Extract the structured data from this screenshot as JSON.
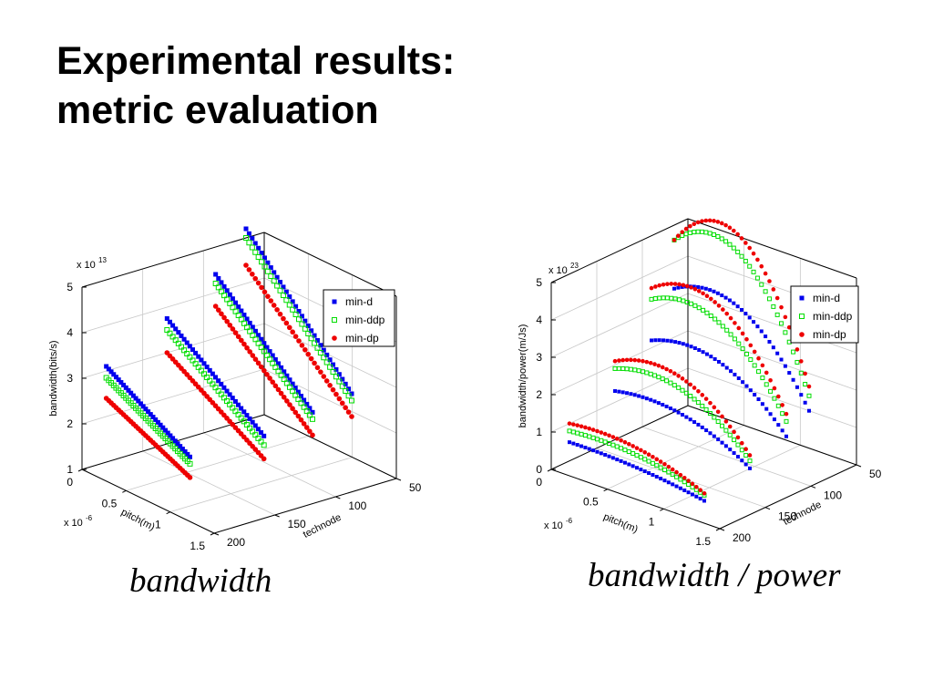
{
  "slide": {
    "title_line1": "Experimental results:",
    "title_line2": "metric evaluation",
    "caption_left": "bandwidth",
    "caption_right": "bandwidth / power"
  },
  "series_colors": {
    "min-d": "#0000ee",
    "min-ddp": "#00dd00",
    "min-dp": "#ee0000"
  },
  "chart_data": [
    {
      "type": "scatter",
      "subtype": "3d-scatter",
      "ylabel": "bandwidth(bits/s)",
      "xlabel_pitch": "pitch(m)",
      "xlabel_technode": "technode",
      "z_exponent": "x 10",
      "z_exponent_power": "13",
      "pitch_exponent": "x 10",
      "pitch_exponent_power": "-6",
      "z_ticks": [
        "1",
        "2",
        "3",
        "4",
        "5"
      ],
      "pitch_ticks": [
        "0",
        "0.5",
        "1",
        "1.5"
      ],
      "technode_ticks": [
        "200",
        "150",
        "100",
        "50"
      ],
      "legend": [
        "min-d",
        "min-ddp",
        "min-dp"
      ],
      "legend_position": "top-right",
      "grid": true,
      "series": [
        {
          "name": "min-d",
          "technode": 180,
          "pitch": [
            0.0,
            0.95
          ],
          "values": [
            3.1,
            2.0
          ]
        },
        {
          "name": "min-d",
          "technode": 130,
          "pitch": [
            0.0,
            1.1
          ],
          "values": [
            3.75,
            2.2
          ]
        },
        {
          "name": "min-d",
          "technode": 90,
          "pitch": [
            0.0,
            1.1
          ],
          "values": [
            4.4,
            2.4
          ]
        },
        {
          "name": "min-d",
          "technode": 65,
          "pitch": [
            0.0,
            1.2
          ],
          "values": [
            5.2,
            2.7
          ]
        },
        {
          "name": "min-ddp",
          "technode": 180,
          "pitch": [
            0.0,
            0.95
          ],
          "values": [
            2.85,
            1.85
          ]
        },
        {
          "name": "min-ddp",
          "technode": 130,
          "pitch": [
            0.0,
            1.1
          ],
          "values": [
            3.5,
            2.0
          ]
        },
        {
          "name": "min-ddp",
          "technode": 90,
          "pitch": [
            0.0,
            1.1
          ],
          "values": [
            4.2,
            2.25
          ]
        },
        {
          "name": "min-ddp",
          "technode": 65,
          "pitch": [
            0.0,
            1.2
          ],
          "values": [
            5.0,
            2.55
          ]
        },
        {
          "name": "min-dp",
          "technode": 180,
          "pitch": [
            0.0,
            0.95
          ],
          "values": [
            2.4,
            1.55
          ]
        },
        {
          "name": "min-dp",
          "technode": 130,
          "pitch": [
            0.0,
            1.1
          ],
          "values": [
            3.0,
            1.7
          ]
        },
        {
          "name": "min-dp",
          "technode": 90,
          "pitch": [
            0.0,
            1.1
          ],
          "values": [
            3.7,
            1.9
          ]
        },
        {
          "name": "min-dp",
          "technode": 65,
          "pitch": [
            0.0,
            1.2
          ],
          "values": [
            4.4,
            2.2
          ]
        }
      ]
    },
    {
      "type": "scatter",
      "subtype": "3d-scatter",
      "ylabel": "bandwidth/power(m/Js)",
      "xlabel_pitch": "pitch(m)",
      "xlabel_technode": "technode",
      "z_exponent": "x 10",
      "z_exponent_power": "23",
      "pitch_exponent": "x 10",
      "pitch_exponent_power": "-6",
      "z_ticks": [
        "0",
        "1",
        "2",
        "3",
        "4",
        "5"
      ],
      "pitch_ticks": [
        "0",
        "0.5",
        "1",
        "1.5"
      ],
      "technode_ticks": [
        "200",
        "150",
        "100",
        "50"
      ],
      "legend": [
        "min-d",
        "min-ddp",
        "min-dp"
      ],
      "legend_position": "top-right",
      "grid": true,
      "series": [
        {
          "name": "min-d",
          "technode": 180,
          "pitch": [
            0.0,
            0.6,
            1.2
          ],
          "values": [
            0.5,
            0.45,
            0.2
          ]
        },
        {
          "name": "min-d",
          "technode": 130,
          "pitch": [
            0.0,
            0.6,
            1.2
          ],
          "values": [
            1.3,
            1.3,
            0.5
          ]
        },
        {
          "name": "min-d",
          "technode": 90,
          "pitch": [
            0.0,
            0.5,
            1.2
          ],
          "values": [
            2.2,
            2.35,
            0.9
          ]
        },
        {
          "name": "min-d",
          "technode": 65,
          "pitch": [
            0.0,
            0.45,
            1.2
          ],
          "values": [
            3.3,
            3.55,
            1.3
          ]
        },
        {
          "name": "min-ddp",
          "technode": 180,
          "pitch": [
            0.0,
            0.55,
            1.2
          ],
          "values": [
            0.8,
            0.8,
            0.35
          ]
        },
        {
          "name": "min-ddp",
          "technode": 130,
          "pitch": [
            0.0,
            0.55,
            1.2
          ],
          "values": [
            1.9,
            2.0,
            0.7
          ]
        },
        {
          "name": "min-ddp",
          "technode": 90,
          "pitch": [
            0.0,
            0.45,
            1.2
          ],
          "values": [
            3.3,
            3.5,
            1.3
          ]
        },
        {
          "name": "min-ddp",
          "technode": 65,
          "pitch": [
            0.0,
            0.4,
            1.2
          ],
          "values": [
            4.6,
            5.1,
            1.7
          ]
        },
        {
          "name": "min-dp",
          "technode": 180,
          "pitch": [
            0.0,
            0.55,
            1.2
          ],
          "values": [
            1.0,
            1.0,
            0.4
          ]
        },
        {
          "name": "min-dp",
          "technode": 130,
          "pitch": [
            0.0,
            0.5,
            1.2
          ],
          "values": [
            2.1,
            2.35,
            0.85
          ]
        },
        {
          "name": "min-dp",
          "technode": 90,
          "pitch": [
            0.0,
            0.45,
            1.2
          ],
          "values": [
            3.6,
            3.95,
            1.5
          ]
        },
        {
          "name": "min-dp",
          "technode": 65,
          "pitch": [
            0.0,
            0.4,
            1.2
          ],
          "values": [
            4.6,
            5.5,
            1.95
          ]
        }
      ]
    }
  ]
}
